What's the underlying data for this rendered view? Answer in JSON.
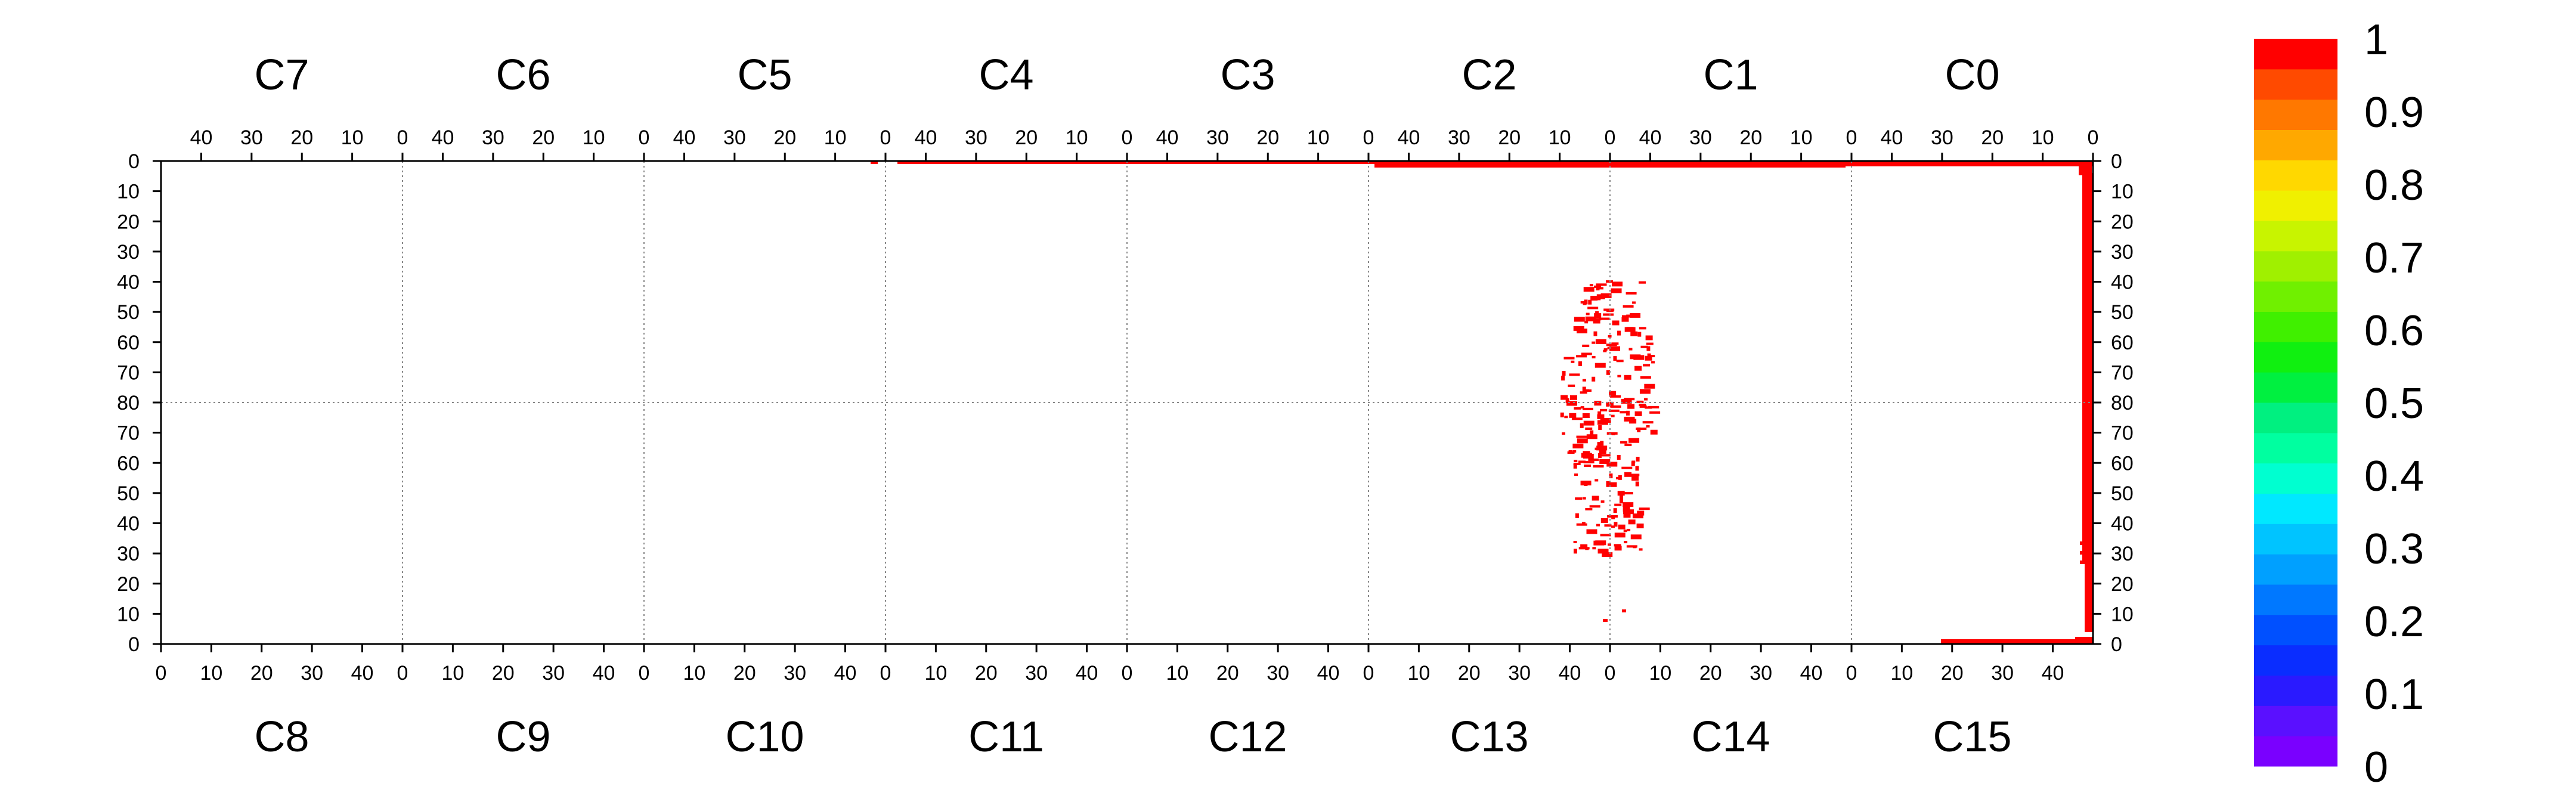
{
  "chart_data": {
    "type": "heatmap",
    "title": "",
    "top_chips": [
      "C7",
      "C6",
      "C5",
      "C4",
      "C3",
      "C2",
      "C1",
      "C0"
    ],
    "bottom_chips": [
      "C8",
      "C9",
      "C10",
      "C11",
      "C12",
      "C13",
      "C14",
      "C15"
    ],
    "chip_x_ticks_top": [
      "40",
      "30",
      "20",
      "10",
      "0"
    ],
    "chip_x_ticks_bottom": [
      "0",
      "10",
      "20",
      "30",
      "40"
    ],
    "y_ticks_top_half": [
      "0",
      "10",
      "20",
      "30",
      "40",
      "50",
      "60",
      "70",
      "80"
    ],
    "y_ticks_bottom_half": [
      "70",
      "60",
      "50",
      "40",
      "30",
      "20",
      "10",
      "0"
    ],
    "grid": "dotted chip boundaries",
    "colorbar": {
      "range": [
        0,
        1
      ],
      "labels": [
        "1",
        "0.9",
        "0.8",
        "0.7",
        "0.6",
        "0.5",
        "0.4",
        "0.3",
        "0.2",
        "0.1",
        "0"
      ],
      "colors": [
        "#7a00ff",
        "#5a10ff",
        "#2a1aff",
        "#0a2dff",
        "#0050ff",
        "#0078ff",
        "#00a0ff",
        "#00c4ff",
        "#00e8ff",
        "#00ffd0",
        "#00ffa0",
        "#00f080",
        "#00f040",
        "#10f010",
        "#40f000",
        "#70f000",
        "#a0f000",
        "#c8f400",
        "#f0f000",
        "#ffd800",
        "#ffa800",
        "#ff7800",
        "#ff4a00",
        "#ff0000"
      ]
    },
    "hit_color": "#ff0000",
    "series": [
      {
        "region": "top-row column 0 (chip C0)",
        "x_value": 0,
        "y_range": [
          0,
          80
        ],
        "value": 1
      },
      {
        "region": "bottom-row column 0 (chip C15)",
        "x_value": 0,
        "y_range": [
          80,
          34
        ],
        "value": 1
      },
      {
        "region": "top-row row 0 (chips C3 to C0)",
        "row": 0,
        "value": 1
      },
      {
        "region": "bottom-row row 0 (chip C15)",
        "row": 0,
        "value": 1
      },
      {
        "region": "scattered cluster near C13/C14 boundary",
        "y_range": [
          31,
          80
        ],
        "value": 1
      }
    ]
  }
}
